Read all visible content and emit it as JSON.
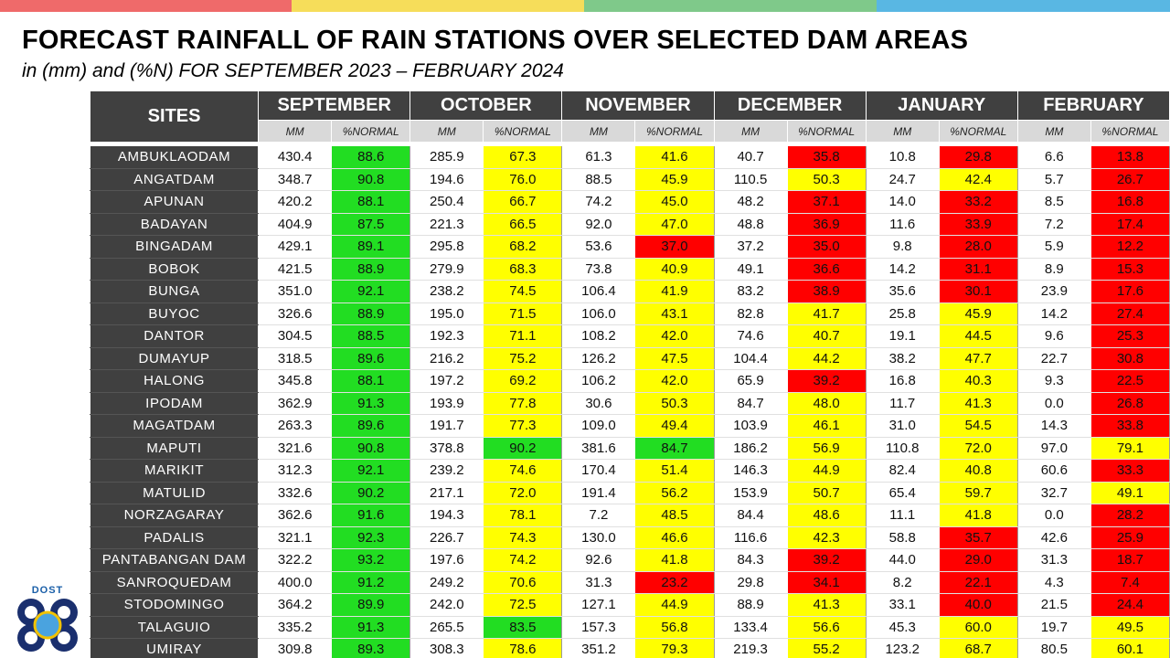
{
  "title": "FORECAST RAINFALL OF RAIN STATIONS OVER SELECTED DAM AREAS",
  "subtitle": "in (mm) and (%N) FOR SEPTEMBER 2023 – FEBRUARY 2024",
  "logo_text": "DOST",
  "sites_header": "SITES",
  "months": [
    "SEPTEMBER",
    "OCTOBER",
    "NOVEMBER",
    "DECEMBER",
    "JANUARY",
    "FEBRUARY"
  ],
  "sub_headers": {
    "mm": "MM",
    "pct": "%NORMAL"
  },
  "colors": {
    "green": "#22dd22",
    "yellow": "#ffff00",
    "red": "#ff0000",
    "header": "#404040"
  },
  "rows": [
    {
      "site": "AMBUKLAODAM",
      "values": [
        [
          "430.4",
          "88.6",
          "green"
        ],
        [
          "285.9",
          "67.3",
          "yellow"
        ],
        [
          "61.3",
          "41.6",
          "yellow"
        ],
        [
          "40.7",
          "35.8",
          "red"
        ],
        [
          "10.8",
          "29.8",
          "red"
        ],
        [
          "6.6",
          "13.8",
          "red"
        ]
      ]
    },
    {
      "site": "ANGATDAM",
      "values": [
        [
          "348.7",
          "90.8",
          "green"
        ],
        [
          "194.6",
          "76.0",
          "yellow"
        ],
        [
          "88.5",
          "45.9",
          "yellow"
        ],
        [
          "110.5",
          "50.3",
          "yellow"
        ],
        [
          "24.7",
          "42.4",
          "yellow"
        ],
        [
          "5.7",
          "26.7",
          "red"
        ]
      ]
    },
    {
      "site": "APUNAN",
      "values": [
        [
          "420.2",
          "88.1",
          "green"
        ],
        [
          "250.4",
          "66.7",
          "yellow"
        ],
        [
          "74.2",
          "45.0",
          "yellow"
        ],
        [
          "48.2",
          "37.1",
          "red"
        ],
        [
          "14.0",
          "33.2",
          "red"
        ],
        [
          "8.5",
          "16.8",
          "red"
        ]
      ]
    },
    {
      "site": "BADAYAN",
      "values": [
        [
          "404.9",
          "87.5",
          "green"
        ],
        [
          "221.3",
          "66.5",
          "yellow"
        ],
        [
          "92.0",
          "47.0",
          "yellow"
        ],
        [
          "48.8",
          "36.9",
          "red"
        ],
        [
          "11.6",
          "33.9",
          "red"
        ],
        [
          "7.2",
          "17.4",
          "red"
        ]
      ]
    },
    {
      "site": "BINGADAM",
      "values": [
        [
          "429.1",
          "89.1",
          "green"
        ],
        [
          "295.8",
          "68.2",
          "yellow"
        ],
        [
          "53.6",
          "37.0",
          "red"
        ],
        [
          "37.2",
          "35.0",
          "red"
        ],
        [
          "9.8",
          "28.0",
          "red"
        ],
        [
          "5.9",
          "12.2",
          "red"
        ]
      ]
    },
    {
      "site": "BOBOK",
      "values": [
        [
          "421.5",
          "88.9",
          "green"
        ],
        [
          "279.9",
          "68.3",
          "yellow"
        ],
        [
          "73.8",
          "40.9",
          "yellow"
        ],
        [
          "49.1",
          "36.6",
          "red"
        ],
        [
          "14.2",
          "31.1",
          "red"
        ],
        [
          "8.9",
          "15.3",
          "red"
        ]
      ]
    },
    {
      "site": "BUNGA",
      "values": [
        [
          "351.0",
          "92.1",
          "green"
        ],
        [
          "238.2",
          "74.5",
          "yellow"
        ],
        [
          "106.4",
          "41.9",
          "yellow"
        ],
        [
          "83.2",
          "38.9",
          "red"
        ],
        [
          "35.6",
          "30.1",
          "red"
        ],
        [
          "23.9",
          "17.6",
          "red"
        ]
      ]
    },
    {
      "site": "BUYOC",
      "values": [
        [
          "326.6",
          "88.9",
          "green"
        ],
        [
          "195.0",
          "71.5",
          "yellow"
        ],
        [
          "106.0",
          "43.1",
          "yellow"
        ],
        [
          "82.8",
          "41.7",
          "yellow"
        ],
        [
          "25.8",
          "45.9",
          "yellow"
        ],
        [
          "14.2",
          "27.4",
          "red"
        ]
      ]
    },
    {
      "site": "DANTOR",
      "values": [
        [
          "304.5",
          "88.5",
          "green"
        ],
        [
          "192.3",
          "71.1",
          "yellow"
        ],
        [
          "108.2",
          "42.0",
          "yellow"
        ],
        [
          "74.6",
          "40.7",
          "yellow"
        ],
        [
          "19.1",
          "44.5",
          "yellow"
        ],
        [
          "9.6",
          "25.3",
          "red"
        ]
      ]
    },
    {
      "site": "DUMAYUP",
      "values": [
        [
          "318.5",
          "89.6",
          "green"
        ],
        [
          "216.2",
          "75.2",
          "yellow"
        ],
        [
          "126.2",
          "47.5",
          "yellow"
        ],
        [
          "104.4",
          "44.2",
          "yellow"
        ],
        [
          "38.2",
          "47.7",
          "yellow"
        ],
        [
          "22.7",
          "30.8",
          "red"
        ]
      ]
    },
    {
      "site": "HALONG",
      "values": [
        [
          "345.8",
          "88.1",
          "green"
        ],
        [
          "197.2",
          "69.2",
          "yellow"
        ],
        [
          "106.2",
          "42.0",
          "yellow"
        ],
        [
          "65.9",
          "39.2",
          "red"
        ],
        [
          "16.8",
          "40.3",
          "yellow"
        ],
        [
          "9.3",
          "22.5",
          "red"
        ]
      ]
    },
    {
      "site": "IPODAM",
      "values": [
        [
          "362.9",
          "91.3",
          "green"
        ],
        [
          "193.9",
          "77.8",
          "yellow"
        ],
        [
          "30.6",
          "50.3",
          "yellow"
        ],
        [
          "84.7",
          "48.0",
          "yellow"
        ],
        [
          "11.7",
          "41.3",
          "yellow"
        ],
        [
          "0.0",
          "26.8",
          "red"
        ]
      ]
    },
    {
      "site": "MAGATDAM",
      "values": [
        [
          "263.3",
          "89.6",
          "green"
        ],
        [
          "191.7",
          "77.3",
          "yellow"
        ],
        [
          "109.0",
          "49.4",
          "yellow"
        ],
        [
          "103.9",
          "46.1",
          "yellow"
        ],
        [
          "31.0",
          "54.5",
          "yellow"
        ],
        [
          "14.3",
          "33.8",
          "red"
        ]
      ]
    },
    {
      "site": "MAPUTI",
      "values": [
        [
          "321.6",
          "90.8",
          "green"
        ],
        [
          "378.8",
          "90.2",
          "green"
        ],
        [
          "381.6",
          "84.7",
          "green"
        ],
        [
          "186.2",
          "56.9",
          "yellow"
        ],
        [
          "110.8",
          "72.0",
          "yellow"
        ],
        [
          "97.0",
          "79.1",
          "yellow"
        ]
      ]
    },
    {
      "site": "MARIKIT",
      "values": [
        [
          "312.3",
          "92.1",
          "green"
        ],
        [
          "239.2",
          "74.6",
          "yellow"
        ],
        [
          "170.4",
          "51.4",
          "yellow"
        ],
        [
          "146.3",
          "44.9",
          "yellow"
        ],
        [
          "82.4",
          "40.8",
          "yellow"
        ],
        [
          "60.6",
          "33.3",
          "red"
        ]
      ]
    },
    {
      "site": "MATULID",
      "values": [
        [
          "332.6",
          "90.2",
          "green"
        ],
        [
          "217.1",
          "72.0",
          "yellow"
        ],
        [
          "191.4",
          "56.2",
          "yellow"
        ],
        [
          "153.9",
          "50.7",
          "yellow"
        ],
        [
          "65.4",
          "59.7",
          "yellow"
        ],
        [
          "32.7",
          "49.1",
          "yellow"
        ]
      ]
    },
    {
      "site": "NORZAGARAY",
      "values": [
        [
          "362.6",
          "91.6",
          "green"
        ],
        [
          "194.3",
          "78.1",
          "yellow"
        ],
        [
          "7.2",
          "48.5",
          "yellow"
        ],
        [
          "84.4",
          "48.6",
          "yellow"
        ],
        [
          "11.1",
          "41.8",
          "yellow"
        ],
        [
          "0.0",
          "28.2",
          "red"
        ]
      ]
    },
    {
      "site": "PADALIS",
      "values": [
        [
          "321.1",
          "92.3",
          "green"
        ],
        [
          "226.7",
          "74.3",
          "yellow"
        ],
        [
          "130.0",
          "46.6",
          "yellow"
        ],
        [
          "116.6",
          "42.3",
          "yellow"
        ],
        [
          "58.8",
          "35.7",
          "red"
        ],
        [
          "42.6",
          "25.9",
          "red"
        ]
      ]
    },
    {
      "site": "PANTABANGAN DAM",
      "values": [
        [
          "322.2",
          "93.2",
          "green"
        ],
        [
          "197.6",
          "74.2",
          "yellow"
        ],
        [
          "92.6",
          "41.8",
          "yellow"
        ],
        [
          "84.3",
          "39.2",
          "red"
        ],
        [
          "44.0",
          "29.0",
          "red"
        ],
        [
          "31.3",
          "18.7",
          "red"
        ]
      ]
    },
    {
      "site": "SANROQUEDAM",
      "values": [
        [
          "400.0",
          "91.2",
          "green"
        ],
        [
          "249.2",
          "70.6",
          "yellow"
        ],
        [
          "31.3",
          "23.2",
          "red"
        ],
        [
          "29.8",
          "34.1",
          "red"
        ],
        [
          "8.2",
          "22.1",
          "red"
        ],
        [
          "4.3",
          "7.4",
          "red"
        ]
      ]
    },
    {
      "site": "STODOMINGO",
      "values": [
        [
          "364.2",
          "89.9",
          "green"
        ],
        [
          "242.0",
          "72.5",
          "yellow"
        ],
        [
          "127.1",
          "44.9",
          "yellow"
        ],
        [
          "88.9",
          "41.3",
          "yellow"
        ],
        [
          "33.1",
          "40.0",
          "red"
        ],
        [
          "21.5",
          "24.4",
          "red"
        ]
      ]
    },
    {
      "site": "TALAGUIO",
      "values": [
        [
          "335.2",
          "91.3",
          "green"
        ],
        [
          "265.5",
          "83.5",
          "green"
        ],
        [
          "157.3",
          "56.8",
          "yellow"
        ],
        [
          "133.4",
          "56.6",
          "yellow"
        ],
        [
          "45.3",
          "60.0",
          "yellow"
        ],
        [
          "19.7",
          "49.5",
          "yellow"
        ]
      ]
    },
    {
      "site": "UMIRAY",
      "values": [
        [
          "309.8",
          "89.3",
          "green"
        ],
        [
          "308.3",
          "78.6",
          "yellow"
        ],
        [
          "351.2",
          "79.3",
          "yellow"
        ],
        [
          "219.3",
          "55.2",
          "yellow"
        ],
        [
          "123.2",
          "68.7",
          "yellow"
        ],
        [
          "80.5",
          "60.1",
          "yellow"
        ]
      ]
    }
  ]
}
